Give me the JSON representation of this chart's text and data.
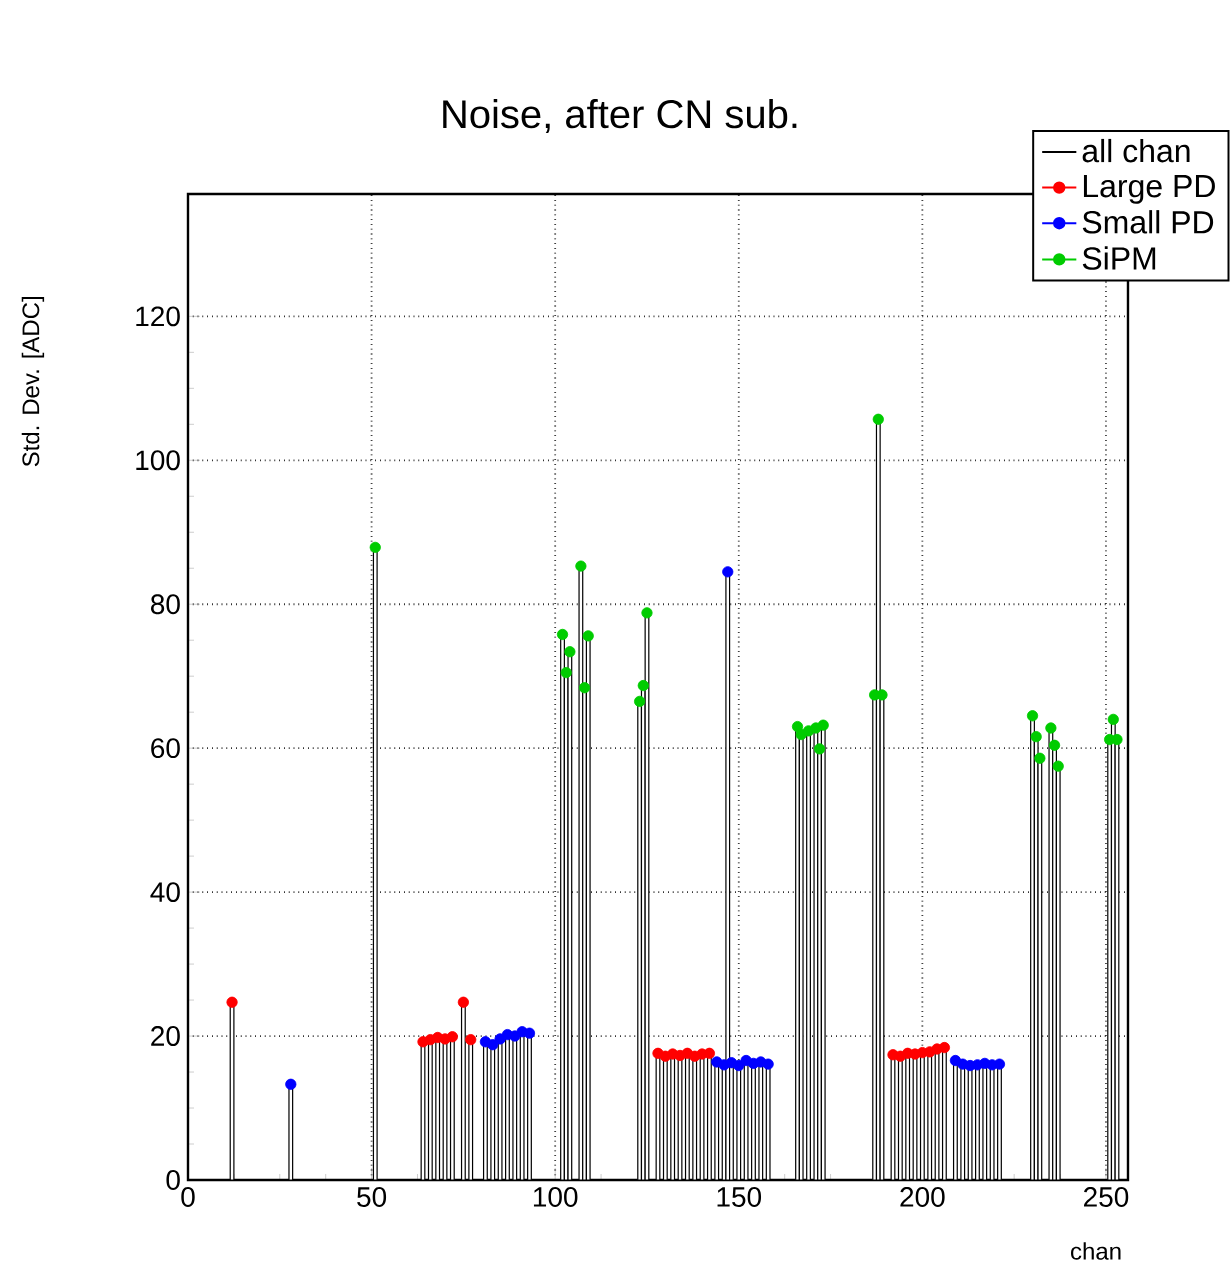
{
  "chart_data": {
    "type": "scatter",
    "title": "Noise, after CN sub.",
    "xlabel": "chan",
    "ylabel": "Std. Dev. [ADC]",
    "xlim": [
      0,
      256
    ],
    "ylim": [
      0,
      137
    ],
    "xticks": [
      0,
      50,
      100,
      150,
      200,
      250
    ],
    "yticks": [
      0,
      20,
      40,
      60,
      80,
      100,
      120
    ],
    "grid": true,
    "legend": "top right",
    "series": [
      {
        "name": "all chan",
        "type": "bar",
        "color": "#000000",
        "x": [
          12,
          28,
          51,
          64,
          66,
          68,
          70,
          72,
          75,
          77,
          81,
          83,
          85,
          87,
          89,
          91,
          93,
          102,
          103,
          104,
          107,
          108,
          109,
          123,
          124,
          125,
          128,
          130,
          132,
          134,
          136,
          138,
          140,
          142,
          144,
          146,
          147,
          148,
          150,
          152,
          154,
          156,
          158,
          166,
          167,
          169,
          171,
          172,
          173,
          187,
          188,
          189,
          192,
          194,
          196,
          198,
          200,
          202,
          204,
          206,
          209,
          211,
          213,
          215,
          217,
          219,
          221,
          230,
          231,
          232,
          235,
          236,
          237,
          251,
          252,
          253
        ],
        "values": [
          24.7,
          13.3,
          87.9,
          19.2,
          19.5,
          19.8,
          19.6,
          19.9,
          24.7,
          19.5,
          19.2,
          18.8,
          19.6,
          20.2,
          20.0,
          20.6,
          20.4,
          75.8,
          70.5,
          73.4,
          85.3,
          68.4,
          75.6,
          66.5,
          68.7,
          78.8,
          17.6,
          17.2,
          17.5,
          17.3,
          17.6,
          17.2,
          17.5,
          17.6,
          16.4,
          16.0,
          84.5,
          16.3,
          15.9,
          16.6,
          16.2,
          16.4,
          16.1,
          63.0,
          61.9,
          62.4,
          62.8,
          59.9,
          63.2,
          67.4,
          105.7,
          67.4,
          17.4,
          17.2,
          17.6,
          17.5,
          17.7,
          17.8,
          18.2,
          18.4,
          16.6,
          16.1,
          15.9,
          16.0,
          16.2,
          16.0,
          16.1,
          64.5,
          61.6,
          58.6,
          62.8,
          60.4,
          57.5,
          61.2,
          64.0,
          61.2
        ]
      },
      {
        "name": "Large PD",
        "color": "#ff0000",
        "x": [
          12,
          64,
          66,
          68,
          70,
          72,
          75,
          77,
          128,
          130,
          132,
          134,
          136,
          138,
          140,
          142,
          192,
          194,
          196,
          198,
          200,
          202,
          204,
          206
        ],
        "values": [
          24.7,
          19.2,
          19.5,
          19.8,
          19.6,
          19.9,
          24.7,
          19.5,
          17.6,
          17.2,
          17.5,
          17.3,
          17.6,
          17.2,
          17.5,
          17.6,
          17.4,
          17.2,
          17.6,
          17.5,
          17.7,
          17.8,
          18.2,
          18.4
        ]
      },
      {
        "name": "Small PD",
        "color": "#0000ff",
        "x": [
          28,
          81,
          83,
          85,
          87,
          89,
          91,
          93,
          144,
          146,
          147,
          148,
          150,
          152,
          154,
          156,
          158,
          209,
          211,
          213,
          215,
          217,
          219,
          221
        ],
        "values": [
          13.3,
          19.2,
          18.8,
          19.6,
          20.2,
          20.0,
          20.6,
          20.4,
          16.4,
          16.0,
          84.5,
          16.3,
          15.9,
          16.6,
          16.2,
          16.4,
          16.1,
          16.6,
          16.1,
          15.9,
          16.0,
          16.2,
          16.0,
          16.1
        ]
      },
      {
        "name": "SiPM",
        "color": "#00cc00",
        "x": [
          51,
          102,
          103,
          104,
          107,
          108,
          109,
          123,
          124,
          125,
          166,
          167,
          169,
          171,
          172,
          173,
          187,
          188,
          189,
          230,
          231,
          232,
          235,
          236,
          237,
          251,
          252,
          253
        ],
        "values": [
          87.9,
          75.8,
          70.5,
          73.4,
          85.3,
          68.4,
          75.6,
          66.5,
          68.7,
          78.8,
          63.0,
          61.9,
          62.4,
          62.8,
          59.9,
          63.2,
          67.4,
          105.7,
          67.4,
          64.5,
          61.6,
          58.6,
          62.8,
          60.4,
          57.5,
          61.2,
          64.0,
          61.2
        ]
      }
    ]
  }
}
